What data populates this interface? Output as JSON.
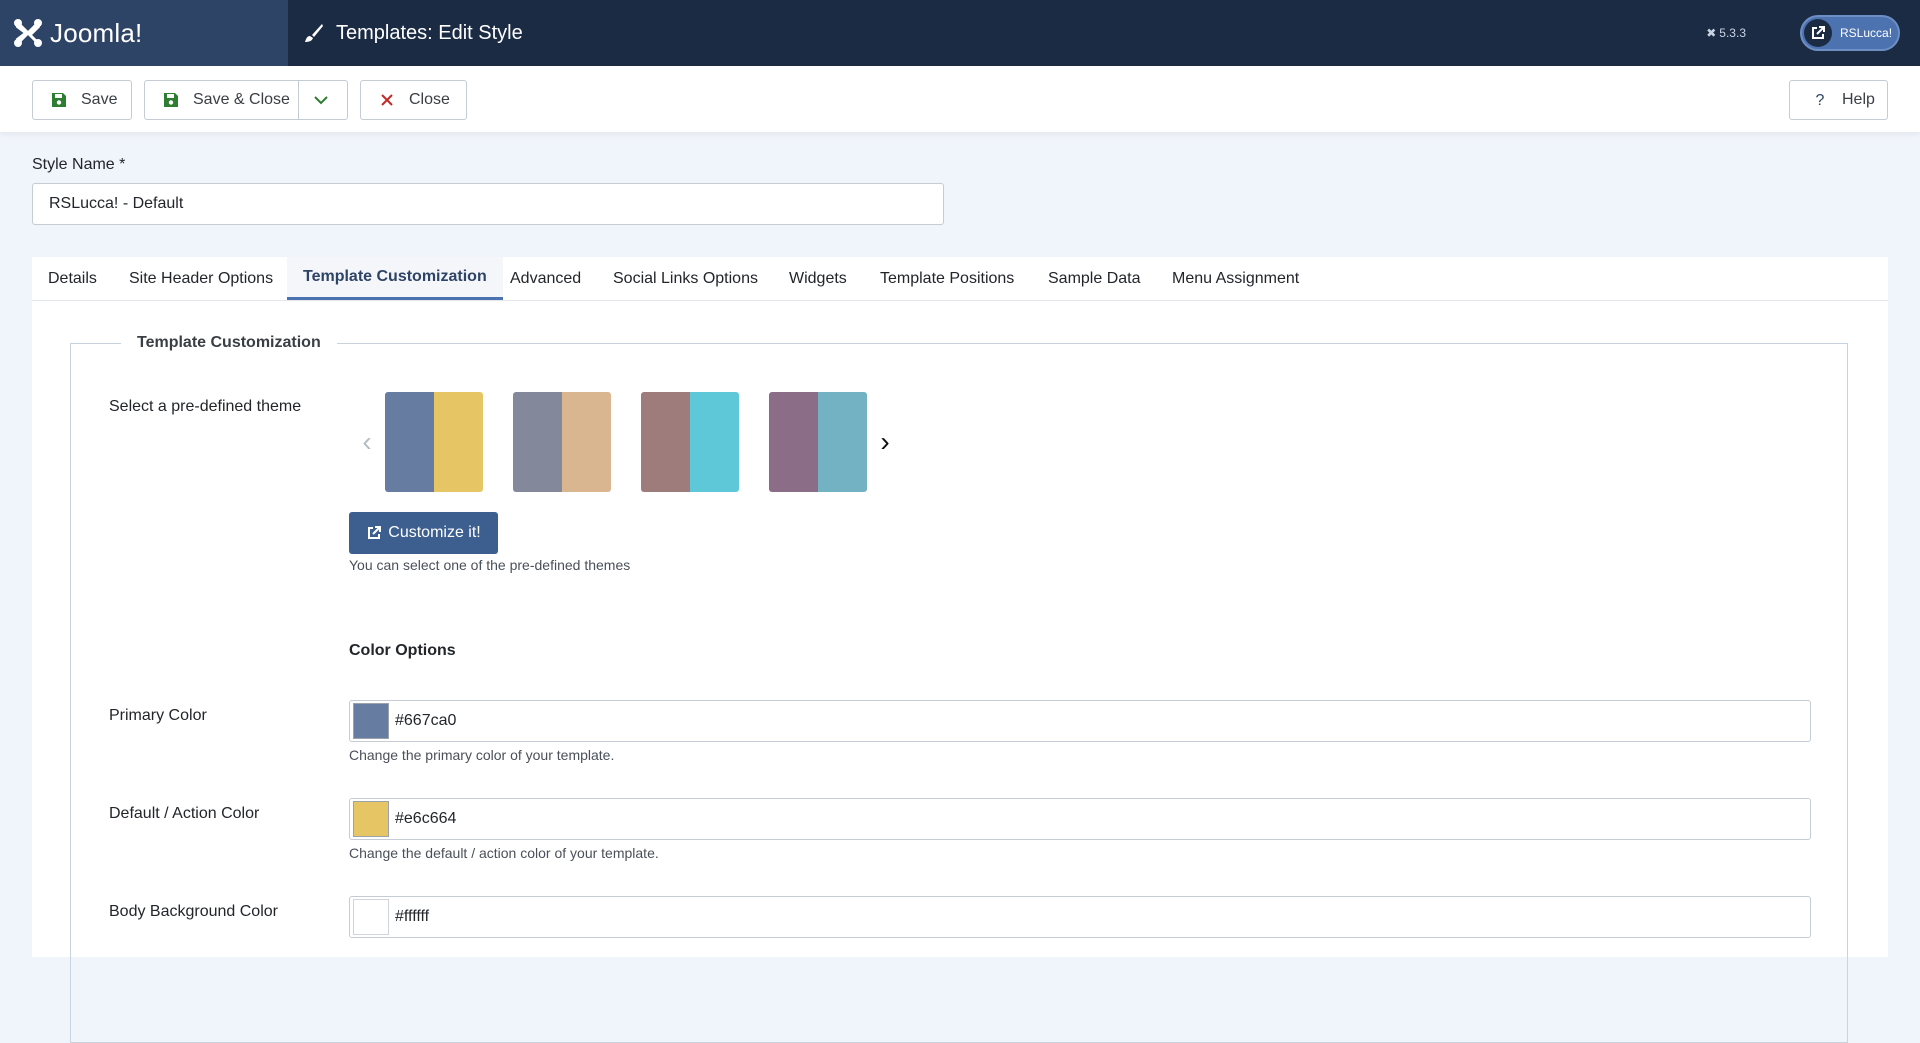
{
  "header": {
    "logo_text": "Joomla!",
    "page_title": "Templates: Edit Style",
    "version": "5.3.3",
    "user_label": "RSLucca!"
  },
  "toolbar": {
    "save_label": "Save",
    "save_close_label": "Save & Close",
    "close_label": "Close",
    "help_label": "Help"
  },
  "form": {
    "style_name_label": "Style Name *",
    "style_name_value": "RSLucca! - Default"
  },
  "tabs": [
    {
      "label": "Details"
    },
    {
      "label": "Site Header Options"
    },
    {
      "label": "Template Customization"
    },
    {
      "label": "Advanced"
    },
    {
      "label": "Social Links Options"
    },
    {
      "label": "Widgets"
    },
    {
      "label": "Template Positions"
    },
    {
      "label": "Sample Data"
    },
    {
      "label": "Menu Assignment"
    }
  ],
  "customization": {
    "legend": "Template Customization",
    "theme_label": "Select a pre-defined theme",
    "themes": [
      {
        "left": "#667ca0",
        "right": "#e6c664"
      },
      {
        "left": "#83899a",
        "right": "#d9b68f"
      },
      {
        "left": "#9e7c7c",
        "right": "#5fc8d8"
      },
      {
        "left": "#8b6d88",
        "right": "#72b2c2"
      }
    ],
    "prev_arrow": "‹",
    "next_arrow": "›",
    "customize_button": "Customize it!",
    "theme_hint": "You can select one of the pre-defined themes",
    "color_options_title": "Color Options",
    "colors": [
      {
        "label": "Primary Color",
        "value": "#667ca0",
        "swatch": "#667ca0",
        "hint": "Change the primary color of your template."
      },
      {
        "label": "Default / Action Color",
        "value": "#e6c664",
        "swatch": "#e6c664",
        "hint": "Change the default / action color of your template."
      },
      {
        "label": "Body Background Color",
        "value": "#ffffff",
        "swatch": "#ffffff",
        "hint": ""
      }
    ]
  },
  "colors": {
    "header_bg": "#1c2b44",
    "brand_bg": "#2e4466",
    "accent": "#4c72b0",
    "customize_bg": "#3d5f90",
    "save_icon": "#2f7d32",
    "close_icon": "#c52827",
    "help_icon": "#2e4466"
  }
}
